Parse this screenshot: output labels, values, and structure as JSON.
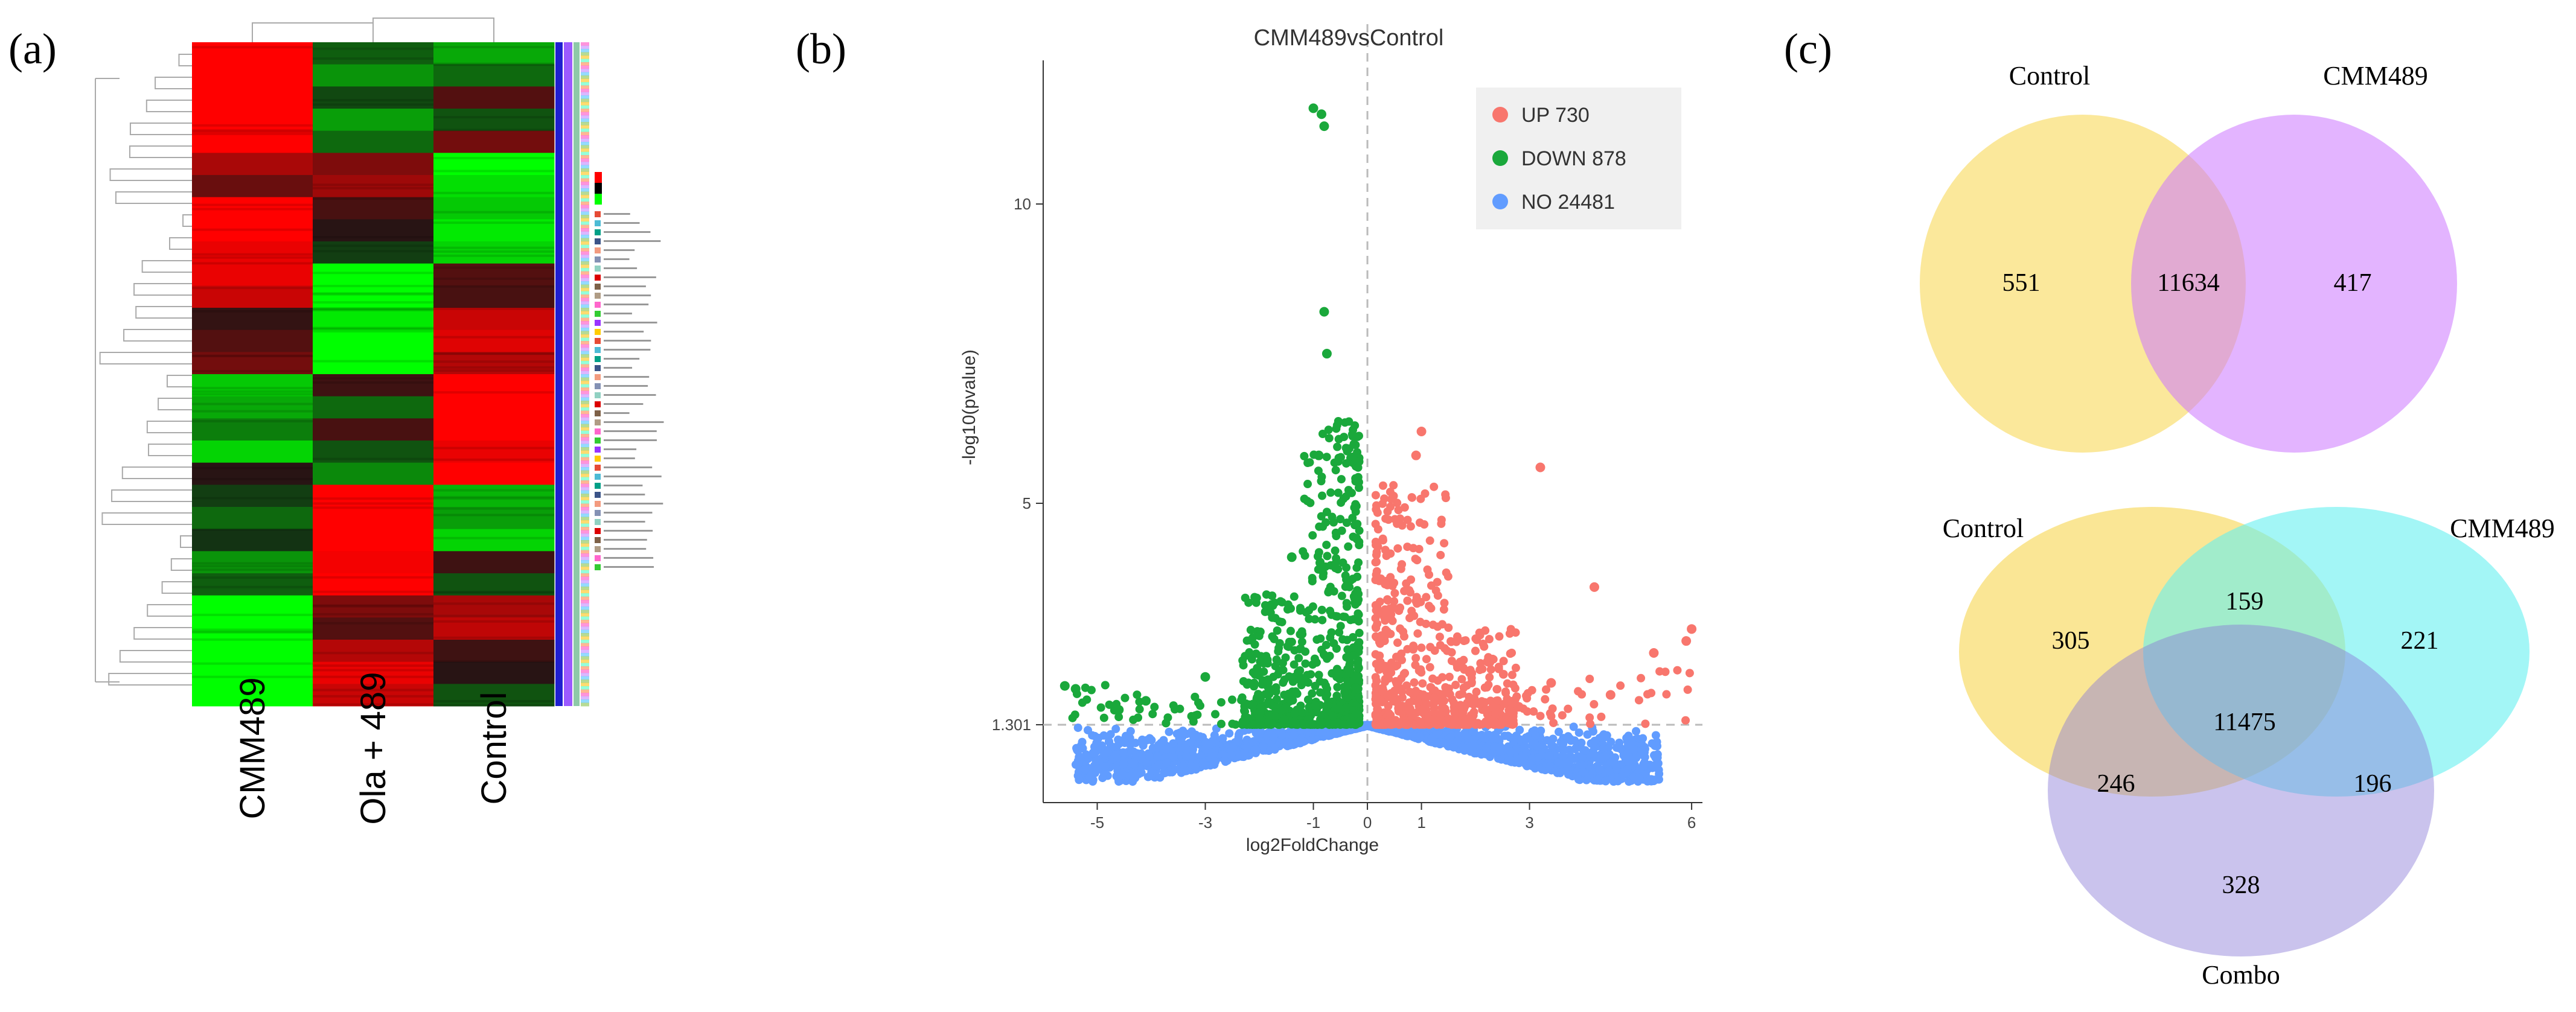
{
  "panels": {
    "a": "(a)",
    "b": "(b)",
    "c": "(c)"
  },
  "chart_data": [
    {
      "type": "heatmap",
      "title": "",
      "columns": [
        "CMM489",
        "Ola + 489",
        "Control"
      ],
      "rows": 30,
      "values": [
        [
          2.0,
          -0.5,
          -1.2
        ],
        [
          2.0,
          -1.0,
          -0.6
        ],
        [
          2.0,
          -0.3,
          0.4
        ],
        [
          2.0,
          -1.1,
          -0.4
        ],
        [
          2.0,
          -0.6,
          0.7
        ],
        [
          1.2,
          0.8,
          -2.0
        ],
        [
          0.6,
          1.1,
          -1.7
        ],
        [
          2.0,
          0.3,
          -1.5
        ],
        [
          2.0,
          0.0,
          -1.8
        ],
        [
          1.8,
          -0.2,
          -1.6
        ],
        [
          1.8,
          -2.0,
          0.4
        ],
        [
          1.5,
          -2.0,
          0.3
        ],
        [
          0.1,
          -1.8,
          1.5
        ],
        [
          0.4,
          -2.0,
          1.7
        ],
        [
          0.7,
          -2.0,
          1.3
        ],
        [
          -1.5,
          0.2,
          2.0
        ],
        [
          -1.2,
          -0.6,
          2.0
        ],
        [
          -0.8,
          0.3,
          2.0
        ],
        [
          -1.6,
          -0.4,
          1.8
        ],
        [
          0.0,
          -0.9,
          2.0
        ],
        [
          -0.2,
          2.0,
          -1.3
        ],
        [
          -0.6,
          2.0,
          -1.1
        ],
        [
          -0.1,
          2.0,
          -1.6
        ],
        [
          -1.0,
          1.9,
          0.2
        ],
        [
          -0.5,
          2.0,
          -0.4
        ],
        [
          -2.0,
          0.8,
          1.2
        ],
        [
          -2.0,
          0.4,
          1.4
        ],
        [
          -2.0,
          1.3,
          0.2
        ],
        [
          -2.0,
          1.8,
          0.0
        ],
        [
          -2.0,
          1.5,
          -0.4
        ]
      ],
      "legend_colors": [
        "#ff0000",
        "#000000",
        "#00ff00"
      ]
    },
    {
      "type": "scatter",
      "title": "CMM489vsControl",
      "xlabel": "log2FoldChange",
      "ylabel": "-log10(pvalue)",
      "xticks": [
        "-5",
        "-3",
        "-1",
        "0",
        "1",
        "3",
        "6"
      ],
      "yticks": [
        "1.301",
        "5",
        "10"
      ],
      "xlim": [
        -6,
        6.2
      ],
      "ylim": [
        0,
        12.4
      ],
      "threshold_y": 1.301,
      "legend": [
        {
          "name": "UP 730",
          "color": "#f8766d"
        },
        {
          "name": "DOWN 878",
          "color": "#1aa83b"
        },
        {
          "name": "NO 24481",
          "color": "#619cff"
        }
      ],
      "highlights": {
        "down": [
          [
            -1.0,
            11.6
          ],
          [
            -0.8,
            11.3
          ],
          [
            -0.85,
            11.5
          ],
          [
            -3.0,
            2.1
          ],
          [
            -4.6,
            1.55
          ],
          [
            -5.4,
            1.9
          ],
          [
            -5.6,
            1.95
          ],
          [
            -4.1,
            1.7
          ],
          [
            -1.4,
            4.1
          ],
          [
            -0.8,
            8.2
          ],
          [
            -0.75,
            7.5
          ],
          [
            -0.9,
            5.8
          ]
        ],
        "up": [
          [
            3.2,
            5.6
          ],
          [
            1.0,
            6.2
          ],
          [
            0.9,
            5.8
          ],
          [
            4.2,
            3.6
          ],
          [
            5.3,
            2.5
          ],
          [
            5.9,
            2.7
          ],
          [
            6.0,
            2.9
          ],
          [
            4.5,
            1.8
          ],
          [
            2.8,
            1.6
          ],
          [
            3.4,
            2.0
          ]
        ]
      }
    },
    {
      "type": "venn",
      "sets": [
        "Control",
        "CMM489"
      ],
      "regions": {
        "Control_only": "551",
        "both": "11634",
        "CMM489_only": "417"
      }
    },
    {
      "type": "venn",
      "sets": [
        "Control",
        "CMM489",
        "Combo"
      ],
      "regions": {
        "Control_only": "305",
        "CMM489_only": "221",
        "Combo_only": "328",
        "Control_CMM489": "159",
        "Control_Combo": "246",
        "CMM489_Combo": "196",
        "all": "11475"
      }
    }
  ]
}
